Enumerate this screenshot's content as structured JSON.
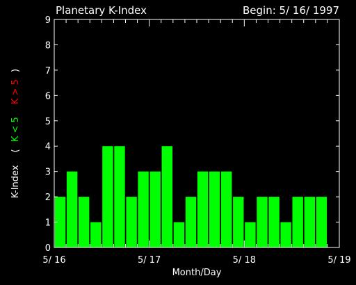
{
  "title": "Planetary K-Index",
  "begin": "Begin: 5/ 16/ 1997",
  "colors": {
    "background": "#000000",
    "axis": "#ffffff",
    "bar": "#00ff00",
    "high": "#ff0000"
  },
  "chart_data": {
    "type": "bar",
    "title": "Planetary K-Index",
    "subtitle": "Begin: 5/ 16/ 1997",
    "xlabel": "Month/Day",
    "ylabel_parts": {
      "main": "K-Index",
      "open": "(",
      "low": "K < 5",
      "high": "K > 5",
      "close": ")"
    },
    "xlim": [
      0,
      24
    ],
    "ylim": [
      0,
      9
    ],
    "yticks": [
      0,
      1,
      2,
      3,
      4,
      5,
      6,
      7,
      8,
      9
    ],
    "xtick_labels": [
      {
        "x": 0,
        "label": "5/ 16"
      },
      {
        "x": 8,
        "label": "5/ 17"
      },
      {
        "x": 16,
        "label": "5/ 18"
      },
      {
        "x": 24,
        "label": "5/ 19"
      }
    ],
    "bar_width_units": 0.9,
    "values": [
      2,
      3,
      2,
      1,
      4,
      4,
      2,
      3,
      3,
      4,
      1,
      2,
      3,
      3,
      3,
      2,
      1,
      2,
      2,
      1,
      2,
      2,
      2
    ]
  }
}
